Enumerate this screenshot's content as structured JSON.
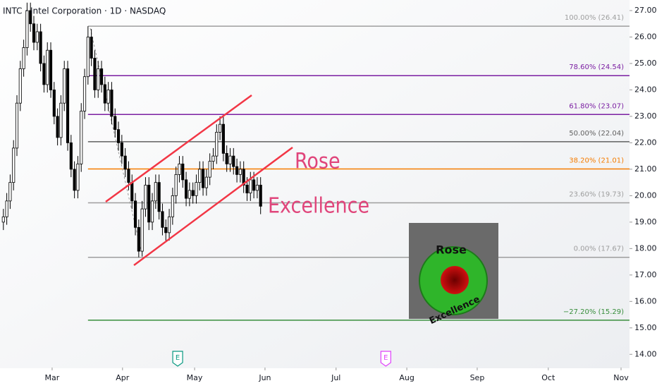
{
  "chart_data": {
    "type": "candlestick",
    "title": "INTC · Intel Corporation · 1D · NASDAQ",
    "open": [
      19.0,
      19.2,
      19.8,
      20.5,
      21.8,
      23.5,
      24.8,
      25.6,
      27.0,
      26.5,
      25.8,
      26.2,
      25.0,
      24.2,
      25.5,
      24.0,
      23.0,
      22.2,
      23.5,
      24.8,
      22.0,
      21.0,
      20.2,
      21.2,
      23.2,
      24.5,
      26.0,
      25.2,
      24.0,
      24.8,
      24.2,
      23.5,
      24.0,
      23.0,
      22.5,
      22.0,
      21.5,
      21.0,
      20.5,
      19.8,
      18.8,
      17.9,
      19.5,
      20.4,
      19.0,
      19.8,
      20.5,
      19.4,
      18.8,
      18.6,
      19.2,
      20.0,
      20.8,
      21.2,
      20.6,
      19.9,
      20.2,
      20.0,
      20.5,
      21.0,
      20.3,
      20.7,
      21.3,
      21.5,
      22.4,
      22.7,
      21.6,
      21.2,
      21.5,
      21.1,
      20.8,
      21.0,
      20.4,
      20.1,
      20.6,
      20.2,
      20.4
    ],
    "high": [
      19.5,
      20.1,
      20.8,
      22.1,
      23.8,
      25.1,
      25.9,
      27.3,
      27.3,
      26.8,
      26.5,
      26.5,
      25.3,
      25.8,
      25.8,
      24.3,
      23.3,
      23.8,
      25.1,
      25.1,
      22.3,
      21.3,
      21.5,
      23.5,
      24.8,
      26.41,
      26.3,
      25.5,
      25.1,
      25.1,
      24.5,
      24.3,
      24.3,
      23.3,
      22.8,
      22.3,
      21.8,
      21.3,
      20.8,
      20.1,
      19.1,
      19.8,
      20.7,
      20.7,
      20.1,
      20.8,
      20.8,
      19.7,
      19.1,
      19.5,
      20.3,
      21.1,
      21.5,
      21.5,
      20.9,
      20.5,
      20.5,
      20.8,
      21.3,
      21.3,
      21.0,
      21.6,
      21.8,
      22.7,
      23.0,
      23.0,
      21.9,
      21.8,
      21.8,
      21.4,
      21.3,
      21.3,
      20.7,
      20.9,
      20.9,
      20.7,
      20.7
    ],
    "low": [
      18.7,
      18.9,
      19.5,
      20.2,
      21.5,
      23.2,
      24.5,
      25.3,
      26.2,
      25.5,
      25.5,
      24.7,
      23.9,
      23.9,
      23.7,
      22.7,
      21.9,
      21.9,
      23.2,
      21.7,
      20.7,
      19.9,
      19.9,
      20.9,
      22.9,
      24.2,
      24.9,
      23.7,
      23.7,
      23.9,
      23.2,
      23.2,
      22.7,
      22.2,
      21.7,
      21.2,
      20.7,
      20.2,
      19.5,
      18.5,
      17.67,
      17.7,
      19.2,
      18.7,
      18.7,
      19.5,
      19.1,
      18.5,
      18.3,
      18.3,
      18.9,
      19.7,
      20.5,
      20.3,
      19.6,
      19.6,
      19.7,
      19.7,
      20.2,
      20.0,
      20.0,
      20.4,
      21.0,
      21.2,
      22.1,
      21.3,
      20.9,
      20.9,
      20.8,
      20.5,
      20.5,
      20.1,
      19.8,
      19.8,
      19.9,
      19.9,
      19.3
    ],
    "close": [
      19.2,
      19.8,
      20.5,
      21.8,
      23.5,
      24.8,
      25.6,
      27.0,
      26.5,
      25.8,
      26.2,
      25.0,
      24.2,
      25.5,
      24.0,
      23.0,
      22.2,
      23.5,
      24.8,
      22.0,
      21.0,
      20.2,
      21.2,
      23.2,
      24.5,
      26.0,
      25.2,
      24.0,
      24.8,
      24.2,
      23.5,
      24.0,
      23.0,
      22.5,
      22.0,
      21.5,
      21.0,
      20.5,
      19.8,
      18.8,
      17.9,
      19.5,
      20.4,
      19.0,
      19.8,
      20.5,
      19.4,
      18.8,
      18.6,
      19.2,
      20.0,
      20.8,
      21.2,
      20.6,
      19.9,
      20.2,
      20.0,
      20.5,
      21.0,
      20.3,
      20.7,
      21.3,
      21.5,
      22.4,
      22.7,
      21.6,
      21.2,
      21.5,
      21.1,
      20.8,
      21.0,
      20.4,
      20.1,
      20.6,
      20.2,
      20.4,
      19.6
    ],
    "up_color": "#ffffff",
    "down_color": "#000000",
    "xlim": [
      -1,
      185
    ],
    "xticks": [
      {
        "value": 14.4,
        "label": "Mar"
      },
      {
        "value": 35.2,
        "label": "Apr"
      },
      {
        "value": 56.5,
        "label": "May"
      },
      {
        "value": 77.3,
        "label": "Jun"
      },
      {
        "value": 98.3,
        "label": "Jul"
      },
      {
        "value": 119.2,
        "label": "Aug"
      },
      {
        "value": 140,
        "label": "Sep"
      },
      {
        "value": 161,
        "label": "Oct"
      },
      {
        "value": 182.5,
        "label": "Nov"
      }
    ],
    "ylim": [
      13.5,
      27.4
    ],
    "yticks": [
      {
        "value": 14,
        "label": "14.00"
      },
      {
        "value": 15,
        "label": "15.00"
      },
      {
        "value": 16,
        "label": "16.00"
      },
      {
        "value": 17,
        "label": "17.00"
      },
      {
        "value": 18,
        "label": "18.00"
      },
      {
        "value": 19,
        "label": "19.00"
      },
      {
        "value": 20,
        "label": "20.00"
      },
      {
        "value": 21,
        "label": "21.00"
      },
      {
        "value": 22,
        "label": "22.00"
      },
      {
        "value": 23,
        "label": "23.00"
      },
      {
        "value": 24,
        "label": "24.00"
      },
      {
        "value": 25,
        "label": "25.00"
      },
      {
        "value": 26,
        "label": "26.00"
      },
      {
        "value": 27,
        "label": "27.00"
      }
    ],
    "fib_start": 25,
    "fib_levels": [
      {
        "value": 26.41,
        "label": "100.00% (26.41)",
        "color": "#9e9e9e"
      },
      {
        "value": 24.54,
        "label": "78.60% (24.54)",
        "color": "#7b1fa2"
      },
      {
        "value": 23.07,
        "label": "61.80% (23.07)",
        "color": "#7b1fa2"
      },
      {
        "value": 22.04,
        "label": "50.00% (22.04)",
        "color": "#616161"
      },
      {
        "value": 21.01,
        "label": "38.20% (21.01)",
        "color": "#f57c00"
      },
      {
        "value": 19.73,
        "label": "23.60% (19.73)",
        "color": "#9e9e9e"
      },
      {
        "value": 17.67,
        "label": "0.00% (17.67)",
        "color": "#9e9e9e"
      },
      {
        "value": 15.29,
        "label": "−27.20% (15.29)",
        "color": "#388e3c"
      }
    ],
    "events": [
      {
        "x": 51.5,
        "label": "E",
        "color": "#089981"
      },
      {
        "x": 113,
        "label": "E",
        "color": "#e040fb"
      }
    ],
    "annotations": [
      "Rose",
      "Excellence"
    ],
    "logo_text": [
      "Rose",
      "Excellence"
    ]
  }
}
